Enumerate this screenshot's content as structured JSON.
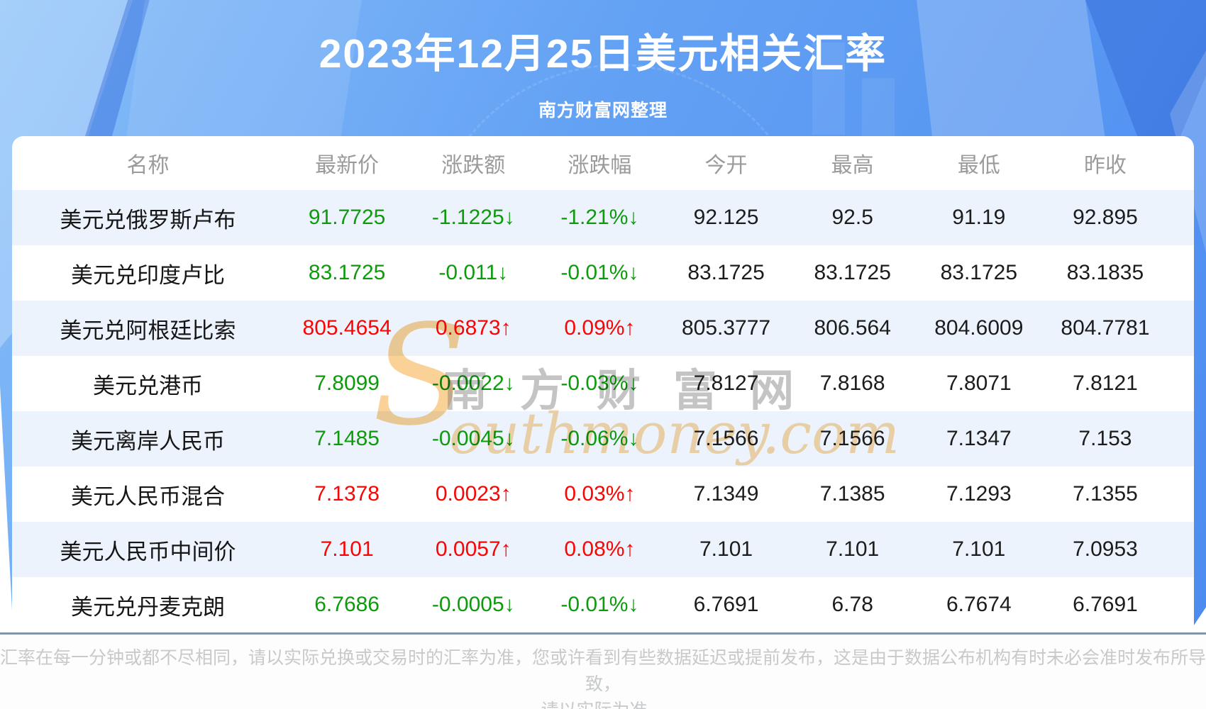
{
  "header": {
    "title": "2023年12月25日美元相关汇率",
    "subtitle": "南方财富网整理"
  },
  "chart_data": {
    "type": "table",
    "title": "2023年12月25日美元相关汇率",
    "columns": [
      "名称",
      "最新价",
      "涨跌额",
      "涨跌幅",
      "今开",
      "最高",
      "最低",
      "昨收"
    ],
    "rows": [
      {
        "name": "美元兑俄罗斯卢布",
        "latest": "91.7725",
        "change": "-1.1225↓",
        "pct": "-1.21%↓",
        "open": "92.125",
        "high": "92.5",
        "low": "91.19",
        "prev": "92.895",
        "trend": "down"
      },
      {
        "name": "美元兑印度卢比",
        "latest": "83.1725",
        "change": "-0.011↓",
        "pct": "-0.01%↓",
        "open": "83.1725",
        "high": "83.1725",
        "low": "83.1725",
        "prev": "83.1835",
        "trend": "down"
      },
      {
        "name": "美元兑阿根廷比索",
        "latest": "805.4654",
        "change": "0.6873↑",
        "pct": "0.09%↑",
        "open": "805.3777",
        "high": "806.564",
        "low": "804.6009",
        "prev": "804.7781",
        "trend": "up"
      },
      {
        "name": "美元兑港币",
        "latest": "7.8099",
        "change": "-0.0022↓",
        "pct": "-0.03%↓",
        "open": "7.8127",
        "high": "7.8168",
        "low": "7.8071",
        "prev": "7.8121",
        "trend": "down"
      },
      {
        "name": "美元离岸人民币",
        "latest": "7.1485",
        "change": "-0.0045↓",
        "pct": "-0.06%↓",
        "open": "7.1566",
        "high": "7.1566",
        "low": "7.1347",
        "prev": "7.153",
        "trend": "down"
      },
      {
        "name": "美元人民币混合",
        "latest": "7.1378",
        "change": "0.0023↑",
        "pct": "0.03%↑",
        "open": "7.1349",
        "high": "7.1385",
        "low": "7.1293",
        "prev": "7.1355",
        "trend": "up"
      },
      {
        "name": "美元人民币中间价",
        "latest": "7.101",
        "change": "0.0057↑",
        "pct": "0.08%↑",
        "open": "7.101",
        "high": "7.101",
        "low": "7.101",
        "prev": "7.0953",
        "trend": "up"
      },
      {
        "name": "美元兑丹麦克朗",
        "latest": "6.7686",
        "change": "-0.0005↓",
        "pct": "-0.01%↓",
        "open": "6.7691",
        "high": "6.78",
        "low": "6.7674",
        "prev": "6.7691",
        "trend": "down"
      }
    ]
  },
  "colors": {
    "up": "#fb0404",
    "down": "#0d9b0d",
    "accent_blue": "#5f9ef3",
    "alt_row": "#ecf3fc"
  },
  "watermark": {
    "latin_initial": "S",
    "latin_rest": "outhmoney.com",
    "cjk": "南方财富网"
  },
  "footer": {
    "line1": "汇率在每一分钟或都不尽相同，请以实际兑换或交易时的汇率为准，您或许看到有些数据延迟或提前发布，这是由于数据公布机构有时未必会准时发布所导致，",
    "line2": "请以实际为准。"
  }
}
